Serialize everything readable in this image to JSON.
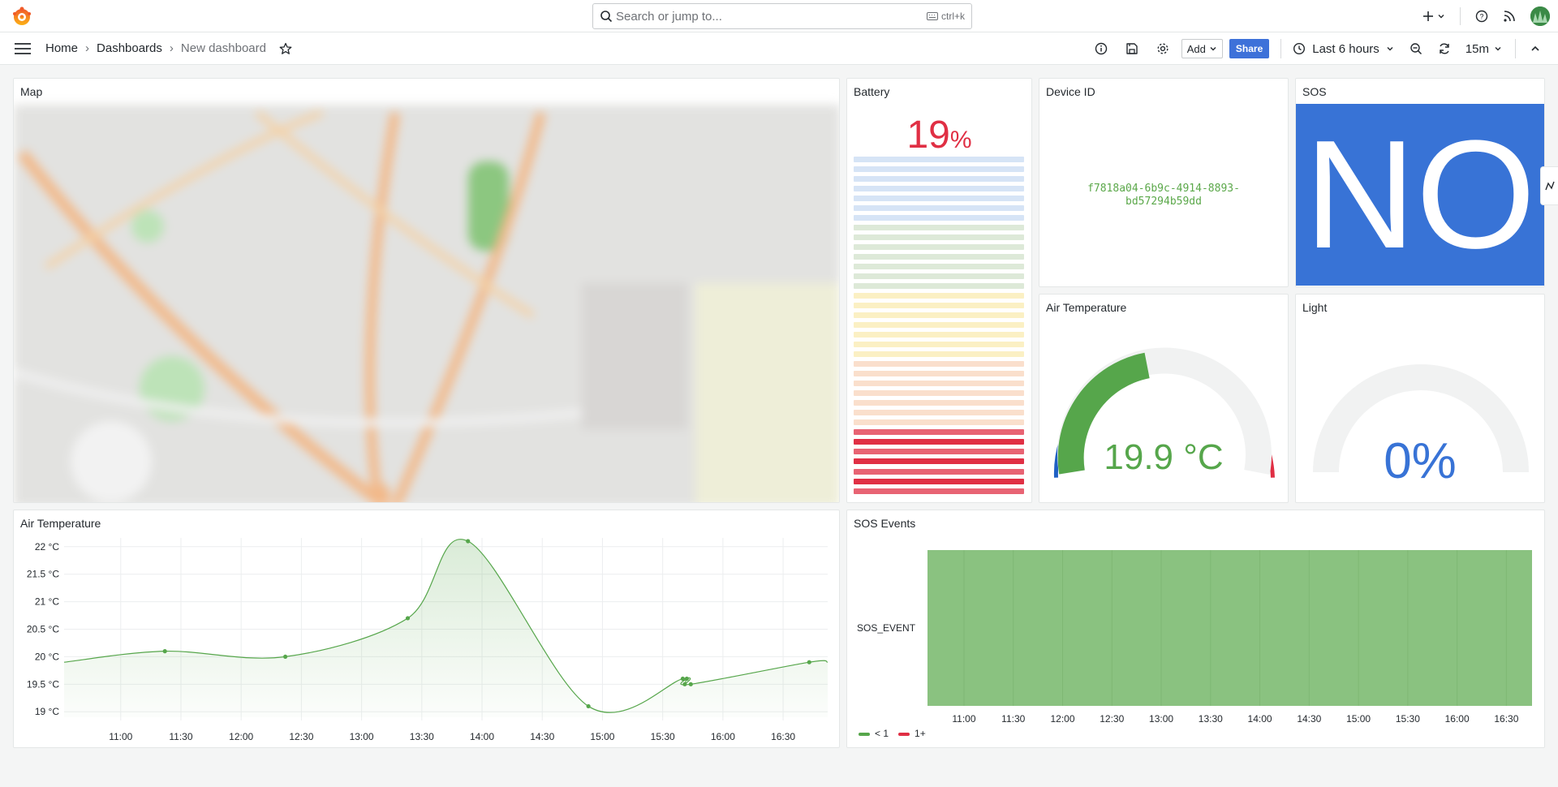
{
  "search": {
    "placeholder": "Search or jump to...",
    "shortcut": "ctrl+k"
  },
  "breadcrumb": {
    "home": "Home",
    "dashboards": "Dashboards",
    "current": "New dashboard"
  },
  "toolbar": {
    "add_label": "Add",
    "share_label": "Share",
    "time_range": "Last 6 hours",
    "refresh_interval": "15m"
  },
  "colors": {
    "accent": "#3d71d9",
    "green": "#56a64b",
    "red": "#e02f44",
    "blue": "#3873d6"
  },
  "panels": {
    "map": {
      "title": "Map"
    },
    "battery": {
      "title": "Battery",
      "value": "19",
      "unit": "%",
      "level_fraction": 0.19
    },
    "device": {
      "title": "Device ID",
      "id_line1": "f7818a04-6b9c-4914-8893-",
      "id_line2": "bd57294b59dd"
    },
    "sos": {
      "title": "SOS",
      "value": "NO"
    },
    "air_gauge": {
      "title": "Air Temperature",
      "value": "19.9 °C"
    },
    "light": {
      "title": "Light",
      "value": "0%"
    },
    "air_chart": {
      "title": "Air Temperature"
    },
    "sos_events": {
      "title": "SOS Events",
      "row_label": "SOS_EVENT",
      "legend": [
        {
          "label": "< 1",
          "color": "#56a64b"
        },
        {
          "label": "1+",
          "color": "#e02f44"
        }
      ]
    }
  },
  "chart_data": [
    {
      "type": "line",
      "title": "Air Temperature",
      "x_ticks": [
        "11:00",
        "11:30",
        "12:00",
        "12:30",
        "13:00",
        "13:30",
        "14:00",
        "14:30",
        "15:00",
        "15:30",
        "16:00",
        "16:30"
      ],
      "y_ticks": [
        "19 °C",
        "19.5 °C",
        "20 °C",
        "20.5 °C",
        "21 °C",
        "21.5 °C",
        "22 °C"
      ],
      "ylim": [
        18.9,
        22.1
      ],
      "xlim_minutes": [
        10.53,
        16.87
      ],
      "series": [
        {
          "points": [
            {
              "x": "11:22",
              "y": 20.1
            },
            {
              "x": "12:22",
              "y": 20.0
            },
            {
              "x": "13:23",
              "y": 20.7
            },
            {
              "x": "13:53",
              "y": 22.1
            },
            {
              "x": "14:53",
              "y": 19.1
            },
            {
              "x": "15:40",
              "y": 19.6
            },
            {
              "x": "15:41",
              "y": 19.5
            },
            {
              "x": "15:42",
              "y": 19.6
            },
            {
              "x": "15:44",
              "y": 19.5
            },
            {
              "x": "16:43",
              "y": 19.9
            }
          ]
        }
      ]
    },
    {
      "type": "table",
      "title": "SOS Events",
      "rows": [
        "SOS_EVENT"
      ],
      "x_ticks": [
        "11:00",
        "11:30",
        "12:00",
        "12:30",
        "13:00",
        "13:30",
        "14:00",
        "14:30",
        "15:00",
        "15:30",
        "16:00",
        "16:30"
      ],
      "state": "< 1"
    }
  ]
}
